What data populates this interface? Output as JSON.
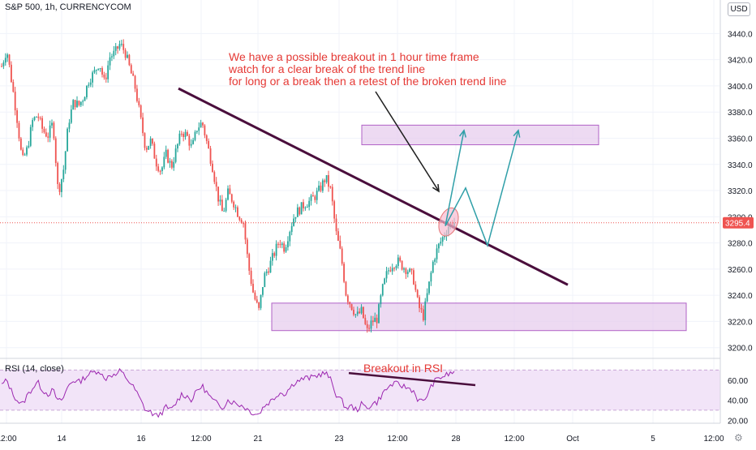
{
  "header": {
    "symbol_label": "S&P 500, 1h, CURRENCYCOM",
    "currency_button": "USD",
    "rsi_label": "RSI (14, close)"
  },
  "icons": {
    "settings": "gear-icon"
  },
  "colors": {
    "up": "#26a69a",
    "down": "#ef5350",
    "trendline": "#4a0e3c",
    "zone_fill": "#e7cdee",
    "zone_stroke": "#b061c6",
    "projection": "#2f9fa8",
    "annotation_arrow": "#1f1f1f",
    "annotation_text": "#e53935",
    "rsi_line": "#9c27b0",
    "rsi_band": "#f2e4f8",
    "price_label_bg": "#ef5350"
  },
  "annotations": {
    "main_text": [
      "We have a possible breakout in 1 hour time frame",
      "watch for a clear break of the trend line",
      "for long or a break then a retest of the broken trend line"
    ],
    "rsi_text": "Breakout in RSI"
  },
  "chart_data": [
    {
      "type": "candlestick",
      "title": "S&P 500, 1h, CURRENCYCOM",
      "y_ticks": [
        3440.0,
        3420.0,
        3400.0,
        3380.0,
        3360.0,
        3340.0,
        3320.0,
        3300.0,
        3280.0,
        3260.0,
        3240.0,
        3220.0,
        3200.0
      ],
      "y_tick_labels": [
        "3440.0",
        "3420.0",
        "3400.0",
        "3380.0",
        "3360.0",
        "3340.0",
        "3320.0",
        "3300.0",
        "3280.0",
        "3260.0",
        "3240.0",
        "3220.0",
        "3200.0"
      ],
      "ylim": [
        3193,
        3452
      ],
      "x_tick_labels": [
        "12:00",
        "14",
        "16",
        "12:00",
        "21",
        "23",
        "12:00",
        "28",
        "12:00",
        "Oct",
        "5",
        "12:00"
      ],
      "last_price": 3295.4,
      "last_price_label": "3295.4",
      "price_path": [
        3415,
        3428,
        3402,
        3375,
        3342,
        3352,
        3373,
        3378,
        3366,
        3362,
        3372,
        3318,
        3335,
        3372,
        3388,
        3385,
        3392,
        3405,
        3410,
        3418,
        3402,
        3422,
        3425,
        3432,
        3426,
        3412,
        3398,
        3375,
        3352,
        3358,
        3342,
        3335,
        3348,
        3338,
        3352,
        3365,
        3362,
        3352,
        3368,
        3372,
        3355,
        3338,
        3316,
        3302,
        3318,
        3312,
        3302,
        3296,
        3262,
        3240,
        3228,
        3254,
        3262,
        3272,
        3282,
        3276,
        3290,
        3302,
        3306,
        3310,
        3312,
        3316,
        3322,
        3330,
        3320,
        3288,
        3270,
        3240,
        3232,
        3224,
        3228,
        3212,
        3220,
        3222,
        3244,
        3258,
        3264,
        3266,
        3262,
        3259,
        3254,
        3232,
        3224,
        3246,
        3268,
        3278,
        3286,
        3294,
        3296
      ],
      "zones": [
        {
          "name": "resistance-zone",
          "y_top": 3370,
          "y_bottom": 3355
        },
        {
          "name": "support-zone",
          "y_top": 3234,
          "y_bottom": 3213
        }
      ],
      "trend_line": [
        [
          3398,
          3248
        ]
      ],
      "projections": [
        {
          "name": "direct-breakout",
          "points": [
            3293,
            3366
          ]
        },
        {
          "name": "retest-breakout",
          "points": [
            3293,
            3322,
            3278,
            3366
          ]
        }
      ]
    },
    {
      "type": "line",
      "title": "RSI (14, close)",
      "y_ticks": [
        60.0,
        40.0,
        20.0
      ],
      "y_tick_labels": [
        "60.00",
        "40.00",
        "20.00"
      ],
      "ylim": [
        17,
        80
      ],
      "band": [
        30,
        70
      ],
      "values": [
        55,
        60,
        48,
        40,
        35,
        45,
        52,
        58,
        50,
        46,
        50,
        38,
        42,
        55,
        60,
        58,
        62,
        66,
        68,
        70,
        60,
        66,
        64,
        69,
        64,
        57,
        50,
        40,
        30,
        28,
        24,
        27,
        33,
        30,
        38,
        46,
        44,
        40,
        50,
        54,
        47,
        40,
        36,
        33,
        40,
        38,
        36,
        34,
        30,
        27,
        26,
        34,
        38,
        42,
        48,
        46,
        52,
        58,
        60,
        62,
        62,
        64,
        66,
        67,
        60,
        46,
        40,
        32,
        34,
        30,
        36,
        32,
        36,
        38,
        46,
        52,
        56,
        56,
        54,
        52,
        50,
        40,
        38,
        48,
        58,
        62,
        64,
        66,
        68
      ],
      "trend_line": [
        [
          67,
          55
        ]
      ]
    }
  ]
}
